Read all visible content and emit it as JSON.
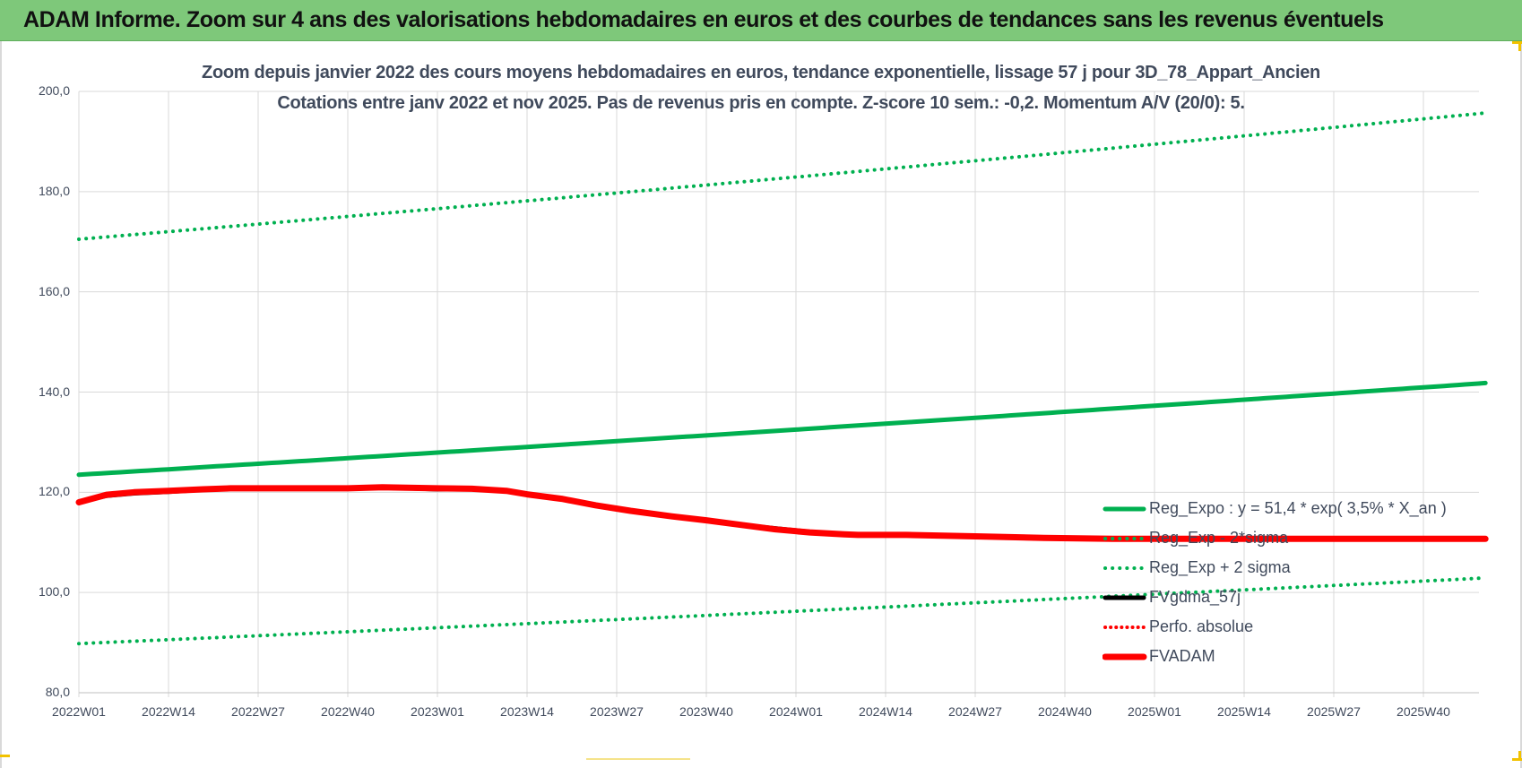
{
  "banner": {
    "title": "ADAM Informe. Zoom sur 4 ans des valorisations hebdomadaires en euros et des courbes de tendances sans les revenus éventuels"
  },
  "colors": {
    "banner": "#7ec87a",
    "reg_expo": "#00b050",
    "fvgdma": "#000000",
    "perfo": "#ff0000",
    "fvadam": "#ff0000",
    "grid": "#d9d9d9",
    "text": "#404a5c"
  },
  "chart_data": {
    "type": "line",
    "title": "Zoom depuis janvier 2022 des cours moyens hebdomadaires en euros, tendance exponentielle, lissage 57 j pour 3D_78_Appart_Ancien",
    "subtitle": "Cotations entre janv 2022 et nov 2025. Pas de revenus pris en compte. Z-score 10 sem.: -0,2. Momentum A/V (20/0): 5.",
    "xlabel": "",
    "ylabel": "",
    "ylim": [
      80,
      200
    ],
    "y_ticks": [
      "80,0",
      "100,0",
      "120,0",
      "140,0",
      "160,0",
      "180,0",
      "200,0"
    ],
    "x_ticks": [
      "2022W01",
      "2022W14",
      "2022W27",
      "2022W40",
      "2023W01",
      "2023W14",
      "2023W27",
      "2023W40",
      "2024W01",
      "2024W14",
      "2024W27",
      "2024W40",
      "2025W01",
      "2025W14",
      "2025W27",
      "2025W40"
    ],
    "x_range_weeks": [
      0,
      204
    ],
    "grid": true,
    "legend_position": "right",
    "series": [
      {
        "name": "Reg_Expo : y = 51,4 * exp( 3,5% *  X_an )",
        "style": "solid-thick",
        "color": "#00b050",
        "x_weeks": [
          0,
          204
        ],
        "values": [
          123.5,
          141.8
        ]
      },
      {
        "name": "Reg_Exp - 2*sigma",
        "style": "dotted",
        "color": "#00b050",
        "x_weeks": [
          0,
          204
        ],
        "values": [
          89.8,
          102.9
        ]
      },
      {
        "name": "Reg_Exp + 2 sigma",
        "style": "dotted",
        "color": "#00b050",
        "x_weeks": [
          0,
          204
        ],
        "values": [
          170.5,
          195.7
        ]
      },
      {
        "name": "FVgdma_57j",
        "style": "solid",
        "color": "#000000",
        "x_weeks": [
          0,
          4,
          8,
          13,
          18,
          22,
          26,
          39,
          44,
          52,
          57,
          62,
          65,
          70,
          75,
          80,
          86,
          91,
          96,
          101,
          106,
          111,
          113,
          120,
          130,
          140,
          150,
          204
        ],
        "values": [
          118.0,
          119.3,
          119.8,
          120.1,
          120.5,
          120.8,
          120.8,
          120.8,
          121.0,
          120.6,
          120.6,
          120.2,
          119.6,
          118.7,
          117.4,
          116.3,
          115.3,
          114.5,
          113.5,
          112.8,
          112.1,
          111.7,
          111.6,
          111.5,
          111.3,
          111.0,
          110.8,
          110.7
        ]
      },
      {
        "name": "Perfo. absolue",
        "style": "dotted",
        "color": "#ff0000",
        "x_weeks": [],
        "values": []
      },
      {
        "name": "FVADAM",
        "style": "solid-thick",
        "color": "#ff0000",
        "x_weeks": [
          0,
          4,
          8,
          13,
          18,
          22,
          26,
          39,
          44,
          52,
          57,
          62,
          65,
          70,
          75,
          80,
          86,
          91,
          96,
          101,
          106,
          111,
          113,
          120,
          130,
          140,
          150,
          204
        ],
        "values": [
          118.0,
          119.5,
          120.0,
          120.3,
          120.6,
          120.8,
          120.8,
          120.8,
          121.0,
          120.8,
          120.7,
          120.3,
          119.6,
          118.7,
          117.4,
          116.3,
          115.2,
          114.4,
          113.5,
          112.6,
          112.0,
          111.6,
          111.5,
          111.5,
          111.2,
          110.9,
          110.7,
          110.7
        ]
      }
    ]
  }
}
